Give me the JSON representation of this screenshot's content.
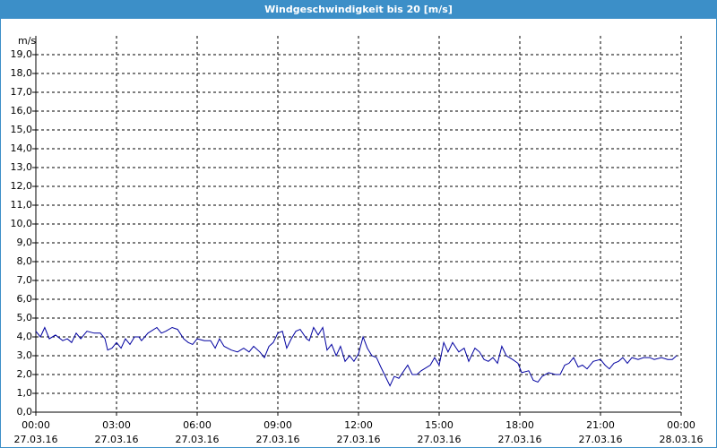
{
  "chart_data": {
    "type": "line",
    "title": "Windgeschwindigkeit bis 20 [m/s]",
    "y_unit": "m/s",
    "color": "#0000a0",
    "grid": true,
    "xlim": [
      0,
      24
    ],
    "ylim": [
      0,
      20
    ],
    "xticks": [
      {
        "value": 0,
        "label": "00:00",
        "date": "27.03.16"
      },
      {
        "value": 3,
        "label": "03:00",
        "date": "27.03.16"
      },
      {
        "value": 6,
        "label": "06:00",
        "date": "27.03.16"
      },
      {
        "value": 9,
        "label": "09:00",
        "date": "27.03.16"
      },
      {
        "value": 12,
        "label": "12:00",
        "date": "27.03.16"
      },
      {
        "value": 15,
        "label": "15:00",
        "date": "27.03.16"
      },
      {
        "value": 18,
        "label": "18:00",
        "date": "27.03.16"
      },
      {
        "value": 21,
        "label": "21:00",
        "date": "27.03.16"
      },
      {
        "value": 24,
        "label": "00:00",
        "date": "28.03.16"
      }
    ],
    "yticks": [
      {
        "value": 0,
        "label": "0,0"
      },
      {
        "value": 1,
        "label": "1,0"
      },
      {
        "value": 2,
        "label": "2,0"
      },
      {
        "value": 3,
        "label": "3,0"
      },
      {
        "value": 4,
        "label": "4,0"
      },
      {
        "value": 5,
        "label": "5,0"
      },
      {
        "value": 6,
        "label": "6,0"
      },
      {
        "value": 7,
        "label": "7,0"
      },
      {
        "value": 8,
        "label": "8,0"
      },
      {
        "value": 9,
        "label": "9,0"
      },
      {
        "value": 10,
        "label": "10,0"
      },
      {
        "value": 11,
        "label": "11,0"
      },
      {
        "value": 12,
        "label": "12,0"
      },
      {
        "value": 13,
        "label": "13,0"
      },
      {
        "value": 14,
        "label": "14,0"
      },
      {
        "value": 15,
        "label": "15,0"
      },
      {
        "value": 16,
        "label": "16,0"
      },
      {
        "value": 17,
        "label": "17,0"
      },
      {
        "value": 18,
        "label": "18,0"
      },
      {
        "value": 19,
        "label": "19,0"
      }
    ],
    "x": [
      0,
      0.17,
      0.33,
      0.5,
      0.73,
      1.0,
      1.17,
      1.33,
      1.5,
      1.67,
      1.9,
      2.17,
      2.4,
      2.57,
      2.67,
      2.83,
      3.0,
      3.17,
      3.33,
      3.5,
      3.67,
      3.83,
      3.93,
      4.17,
      4.5,
      4.67,
      4.83,
      5.07,
      5.27,
      5.5,
      5.67,
      5.83,
      6.0,
      6.27,
      6.5,
      6.67,
      6.83,
      7.0,
      7.27,
      7.5,
      7.73,
      7.93,
      8.1,
      8.33,
      8.5,
      8.67,
      8.83,
      9.0,
      9.17,
      9.33,
      9.5,
      9.67,
      9.83,
      10.07,
      10.17,
      10.33,
      10.5,
      10.67,
      10.83,
      11.0,
      11.17,
      11.33,
      11.5,
      11.67,
      11.83,
      12.0,
      12.17,
      12.33,
      12.5,
      12.67,
      12.83,
      13.0,
      13.17,
      13.33,
      13.5,
      13.83,
      14.0,
      14.17,
      14.33,
      14.67,
      14.83,
      15.0,
      15.17,
      15.33,
      15.5,
      15.73,
      15.93,
      16.1,
      16.33,
      16.5,
      16.67,
      16.83,
      17.0,
      17.17,
      17.33,
      17.5,
      17.73,
      17.93,
      18.07,
      18.33,
      18.5,
      18.67,
      18.83,
      19.07,
      19.33,
      19.5,
      19.67,
      19.83,
      20.0,
      20.17,
      20.33,
      20.5,
      20.73,
      21.0,
      21.17,
      21.33,
      21.5,
      21.67,
      21.83,
      22.0,
      22.17,
      22.4,
      22.6,
      22.83,
      23.0,
      23.27,
      23.5,
      23.67,
      23.83
    ],
    "values": [
      4.3,
      4.0,
      4.5,
      3.9,
      4.1,
      3.8,
      3.9,
      3.7,
      4.2,
      3.9,
      4.3,
      4.2,
      4.2,
      3.9,
      3.3,
      3.4,
      3.7,
      3.4,
      3.9,
      3.6,
      4.0,
      4.0,
      3.8,
      4.2,
      4.5,
      4.2,
      4.3,
      4.5,
      4.4,
      3.9,
      3.7,
      3.6,
      3.9,
      3.8,
      3.8,
      3.4,
      3.9,
      3.5,
      3.3,
      3.2,
      3.4,
      3.2,
      3.5,
      3.2,
      2.9,
      3.5,
      3.7,
      4.2,
      4.3,
      3.4,
      3.9,
      4.3,
      4.4,
      3.9,
      3.8,
      4.5,
      4.1,
      4.5,
      3.3,
      3.6,
      3.0,
      3.5,
      2.7,
      3.0,
      2.7,
      3.1,
      4.0,
      3.4,
      3.0,
      2.9,
      2.4,
      1.9,
      1.4,
      1.9,
      1.8,
      2.5,
      2.0,
      2.0,
      2.2,
      2.5,
      2.9,
      2.5,
      3.7,
      3.2,
      3.7,
      3.2,
      3.4,
      2.7,
      3.4,
      3.2,
      2.8,
      2.7,
      2.9,
      2.6,
      3.5,
      3.0,
      2.8,
      2.6,
      2.1,
      2.2,
      1.7,
      1.6,
      1.9,
      2.1,
      2.0,
      2.0,
      2.5,
      2.6,
      2.9,
      2.4,
      2.5,
      2.3,
      2.7,
      2.8,
      2.5,
      2.3,
      2.6,
      2.7,
      2.9,
      2.6,
      2.9,
      2.8,
      2.9,
      2.9,
      2.8,
      2.9,
      2.8,
      2.8,
      3.0
    ]
  }
}
